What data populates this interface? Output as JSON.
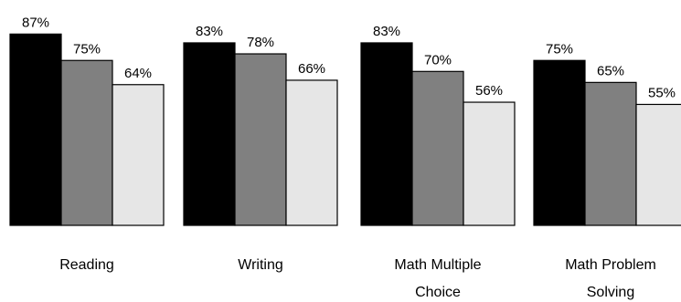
{
  "chart_data": {
    "type": "bar",
    "title": "",
    "xlabel": "",
    "ylabel": "",
    "ylim": [
      0,
      100
    ],
    "grid": false,
    "legend": "none",
    "categories": [
      [
        "Reading"
      ],
      [
        "Writing"
      ],
      [
        "Math Multiple",
        "Choice"
      ],
      [
        "Math Problem",
        "Solving"
      ]
    ],
    "series": [
      {
        "color": "#000000",
        "values": [
          87,
          83,
          83,
          75
        ],
        "labels": [
          "87%",
          "83%",
          "83%",
          "75%"
        ]
      },
      {
        "color": "#808080",
        "values": [
          75,
          78,
          70,
          65
        ],
        "labels": [
          "75%",
          "78%",
          "70%",
          "65%"
        ]
      },
      {
        "color": "#e6e6e6",
        "values": [
          64,
          66,
          56,
          55
        ],
        "labels": [
          "64%",
          "66%",
          "56%",
          "55%"
        ]
      }
    ]
  }
}
